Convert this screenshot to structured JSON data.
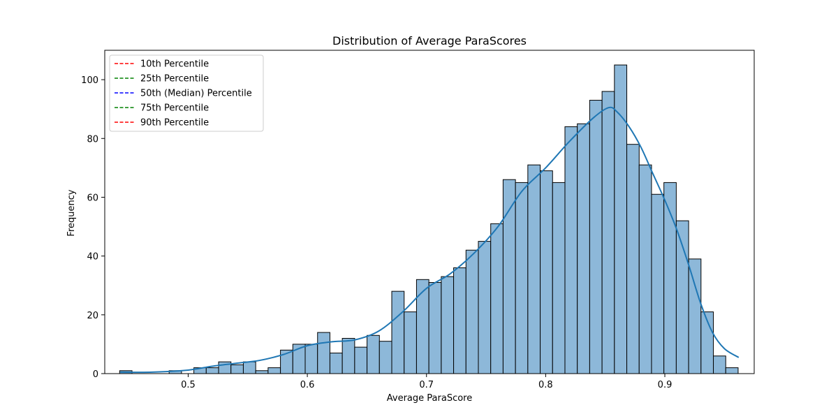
{
  "chart_data": {
    "type": "bar",
    "title": "Distribution of Average ParaScores",
    "xlabel": "Average ParaScore",
    "ylabel": "Frequency",
    "xlim": [
      0.43,
      0.975
    ],
    "ylim": [
      0,
      110
    ],
    "x_ticks": [
      0.5,
      0.6,
      0.7,
      0.8,
      0.9
    ],
    "x_tick_labels": [
      "0.5",
      "0.6",
      "0.7",
      "0.8",
      "0.9"
    ],
    "y_ticks": [
      0,
      20,
      40,
      60,
      80,
      100
    ],
    "y_tick_labels": [
      "0",
      "20",
      "40",
      "60",
      "80",
      "100"
    ],
    "grid": false,
    "bins": {
      "start": 0.4425,
      "width": 0.01038,
      "counts": [
        1,
        0,
        0,
        0,
        1,
        0,
        2,
        2,
        4,
        3,
        4,
        1,
        2,
        8,
        10,
        10,
        14,
        7,
        12,
        9,
        13,
        11,
        28,
        21,
        32,
        31,
        33,
        36,
        42,
        45,
        51,
        66,
        65,
        71,
        69,
        65,
        84,
        85,
        93,
        96,
        105,
        78,
        71,
        61,
        65,
        52,
        39,
        21,
        6,
        2
      ]
    },
    "kde": {
      "x": [
        0.443,
        0.47,
        0.5,
        0.52,
        0.54,
        0.56,
        0.58,
        0.6,
        0.62,
        0.64,
        0.66,
        0.68,
        0.7,
        0.72,
        0.74,
        0.76,
        0.78,
        0.8,
        0.82,
        0.84,
        0.853,
        0.86,
        0.87,
        0.88,
        0.89,
        0.9,
        0.91,
        0.92,
        0.93,
        0.94,
        0.95,
        0.962
      ],
      "y": [
        0.5,
        0.5,
        1.2,
        2.5,
        3.5,
        4.5,
        6.5,
        9.5,
        10.8,
        11.5,
        14.5,
        21,
        29,
        34,
        41,
        50,
        62,
        70,
        79,
        87,
        90.5,
        89,
        84,
        77,
        68,
        59,
        49,
        37,
        24,
        14,
        8.5,
        5.5
      ]
    },
    "legend": {
      "position": "top-left",
      "entries": [
        {
          "label": "10th Percentile",
          "color": "#ff0000"
        },
        {
          "label": "25th Percentile",
          "color": "#008000"
        },
        {
          "label": "50th (Median) Percentile",
          "color": "#0000ff"
        },
        {
          "label": "75th Percentile",
          "color": "#008000"
        },
        {
          "label": "90th Percentile",
          "color": "#ff0000"
        }
      ]
    },
    "colors": {
      "bar_fill": "#8db8d9",
      "bar_edge": "#000000",
      "kde_line": "#1f77b4"
    }
  }
}
